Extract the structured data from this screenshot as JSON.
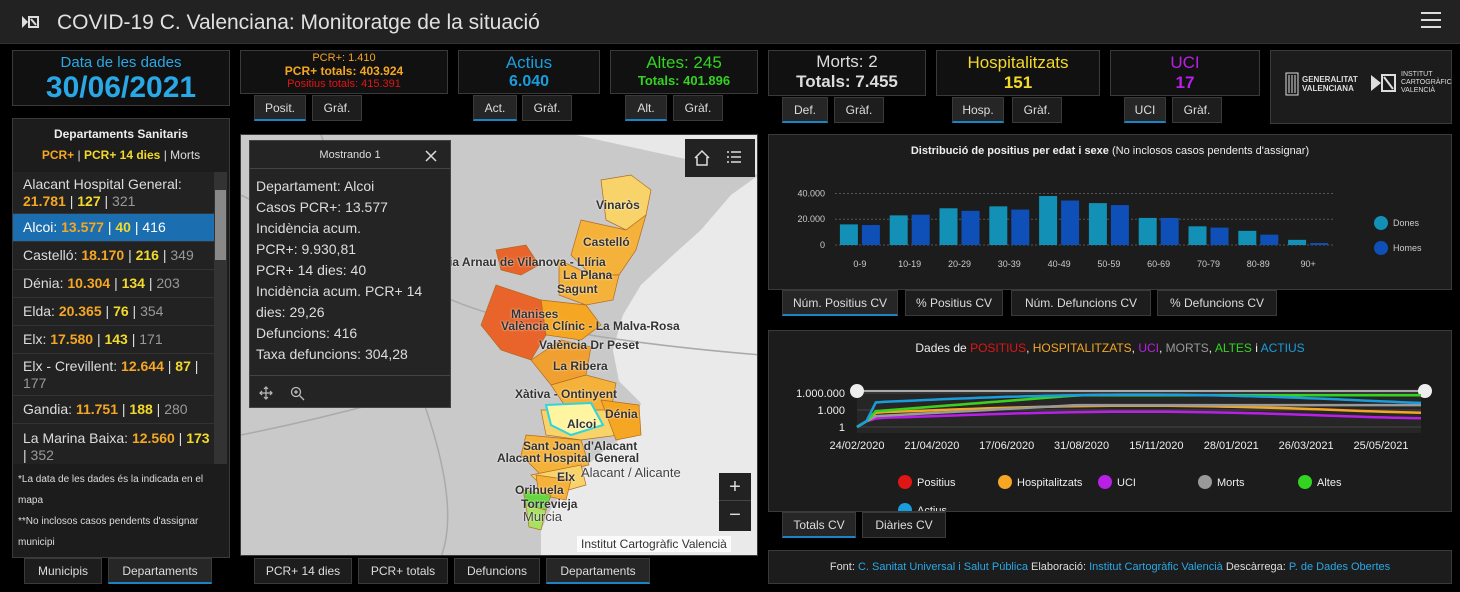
{
  "header": {
    "title": "COVID-19 C. Valenciana: Monitoratge de la situació"
  },
  "date": {
    "label": "Data de les dades",
    "value": "30/06/2021"
  },
  "positius": {
    "line1": "PCR+: 1.410",
    "line2": "PCR+ totals: 403.924",
    "line3": "Positius totals: 415.391",
    "tab1": "Posit.",
    "tab2": "Gràf."
  },
  "actius": {
    "label": "Actius",
    "value": "6.040",
    "tab1": "Act.",
    "tab2": "Gràf."
  },
  "altes": {
    "label": "Altes: 245",
    "value": "Totals: 401.896",
    "tab1": "Alt.",
    "tab2": "Gràf."
  },
  "morts": {
    "label": "Morts: 2",
    "value": "Totals: 7.455",
    "tab1": "Def.",
    "tab2": "Gràf."
  },
  "hosp": {
    "label": "Hospitalitzats",
    "value": "151",
    "tab1": "Hosp.",
    "tab2": "Gràf."
  },
  "uci": {
    "label": "UCI",
    "value": "17",
    "tab1": "UCI",
    "tab2": "Gràf."
  },
  "logos": {
    "gv1": "GENERALITAT",
    "gv2": "VALENCIANA",
    "icv1": "INSTITUT",
    "icv2": "CARTOGRÀFIC",
    "icv3": "VALENCIÀ"
  },
  "departments": {
    "title": "Departaments Sanitaris",
    "legend_a": "PCR+",
    "legend_sep1": " | ",
    "legend_b": "PCR+ 14 dies",
    "legend_sep2": " | ",
    "legend_c": "Morts",
    "items": [
      {
        "name": "Alacant Hospital General: ",
        "a": "21.781",
        "b": "127",
        "c": "321"
      },
      {
        "name": "Alcoi: ",
        "a": "13.577",
        "b": "40",
        "c": "416"
      },
      {
        "name": "Castelló: ",
        "a": "18.170",
        "b": "216",
        "c": "349"
      },
      {
        "name": "Dénia: ",
        "a": "10.304",
        "b": "134",
        "c": "203"
      },
      {
        "name": "Elda: ",
        "a": "20.365",
        "b": "76",
        "c": "354"
      },
      {
        "name": "Elx: ",
        "a": "17.580",
        "b": "143",
        "c": "171"
      },
      {
        "name": "Elx - Crevillent: ",
        "a": "12.644",
        "b": "87",
        "c": "177"
      },
      {
        "name": "Gandia: ",
        "a": "11.751",
        "b": "188",
        "c": "280"
      },
      {
        "name": "La Marina Baixa: ",
        "a": "12.560",
        "b": "173",
        "c": "352"
      }
    ],
    "note1": "*La data de les dades és la indicada en el mapa",
    "note2": "**No inclosos casos pendents d'assignar municipi",
    "tab1": "Municipis",
    "tab2": "Departaments"
  },
  "popup": {
    "title": "Mostrando 1",
    "lines": [
      "Departament: Alcoi",
      "Casos PCR+: 13.577",
      "Incidència acum.",
      "PCR+: 9.930,81",
      "PCR+ 14 dies: 40",
      "Incidència acum. PCR+ 14",
      "dies: 29,26",
      "Defuncions: 416",
      "Taxa defuncions: 304,28"
    ]
  },
  "map": {
    "labels": [
      "Vinaròs",
      "Castelló",
      "La Plana",
      "Sagunt",
      "ia Arnau de Vilanova - Llíria",
      "Manises",
      "València Clínic - La Malva-Rosa",
      "València Dr Peset",
      "La Ribera",
      "Xàtiva - Ontinyent",
      "Dénia",
      "Alcoi",
      "Sant Joan d'Alacant",
      "Alacant Hospital General",
      "Elx",
      "Alacant / Alicante",
      "Orihuela",
      "Torrevieja",
      "Murcia"
    ],
    "attribution": "Institut Cartogràfic Valencià",
    "zoom_in": "+",
    "zoom_out": "−",
    "tabs": [
      "PCR+ 14 dies",
      "PCR+ totals",
      "Defuncions",
      "Departaments"
    ]
  },
  "colors": {
    "accent": "#1b84c7",
    "positius": "#e01515",
    "hosp": "#f5a623",
    "uci": "#b920e6",
    "morts": "#999999",
    "altes": "#33d321",
    "actius": "#1a9ddc",
    "dones": "#1390b5",
    "homes": "#0f4fb8"
  },
  "chart_data": [
    {
      "type": "bar",
      "title": "Distribució de positius per edat i sexe",
      "subtitle": "(No inclosos casos pendents d'assignar)",
      "categories": [
        "0-9",
        "10-19",
        "20-29",
        "30-39",
        "40-49",
        "50-59",
        "60-69",
        "70-79",
        "80-89",
        "90+"
      ],
      "ylim": [
        0,
        45000
      ],
      "yticks": [
        "0",
        "20.000",
        "40.000"
      ],
      "series": [
        {
          "name": "Dones",
          "values": [
            16000,
            23000,
            28500,
            30000,
            38000,
            32500,
            21000,
            14500,
            11000,
            4000
          ]
        },
        {
          "name": "Homes",
          "values": [
            15500,
            23500,
            26500,
            27500,
            34500,
            31000,
            21000,
            13500,
            8000,
            1500
          ]
        }
      ],
      "legend": "right",
      "tabs": [
        "Núm. Positius CV",
        "% Positius CV",
        "Núm. Defuncions CV",
        "% Defuncions CV"
      ]
    },
    {
      "type": "line",
      "title_prefix": "Dades de ",
      "title_parts": [
        {
          "t": "POSITIUS",
          "c": "positius"
        },
        {
          "t": ", ",
          "c": ""
        },
        {
          "t": "HOSPITALITZATS",
          "c": "hosp"
        },
        {
          "t": ", ",
          "c": ""
        },
        {
          "t": "UCI",
          "c": "uci"
        },
        {
          "t": ", ",
          "c": ""
        },
        {
          "t": "MORTS",
          "c": "morts"
        },
        {
          "t": ", ",
          "c": ""
        },
        {
          "t": "ALTES",
          "c": "altes"
        },
        {
          "t": " i ",
          "c": ""
        },
        {
          "t": "ACTIUS",
          "c": "actius"
        }
      ],
      "yscale": "log",
      "yticks": [
        "1.000.000",
        "1.000",
        "1"
      ],
      "xticks": [
        "24/02/2020",
        "21/04/2020",
        "17/06/2020",
        "31/08/2020",
        "15/11/2020",
        "28/01/2021",
        "26/03/2021",
        "25/05/2021"
      ],
      "series": [
        {
          "name": "Positius",
          "final": 415391
        },
        {
          "name": "Hospitalitzats",
          "final": 151
        },
        {
          "name": "UCI",
          "final": 17
        },
        {
          "name": "Morts",
          "final": 7455
        },
        {
          "name": "Altes",
          "final": 401896
        },
        {
          "name": "Actius",
          "final": 6040
        }
      ],
      "tabs": [
        "Totals CV",
        "Diàries CV"
      ]
    }
  ],
  "footer": {
    "font_label": "Font: ",
    "font_link": "C. Sanitat Universal i Salut Pública",
    "elab_label": " Elaboració: ",
    "elab_link": "Institut Cartogràfic Valencià",
    "desc_label": " Descàrrega: ",
    "desc_link": "P. de Dades Obertes"
  }
}
